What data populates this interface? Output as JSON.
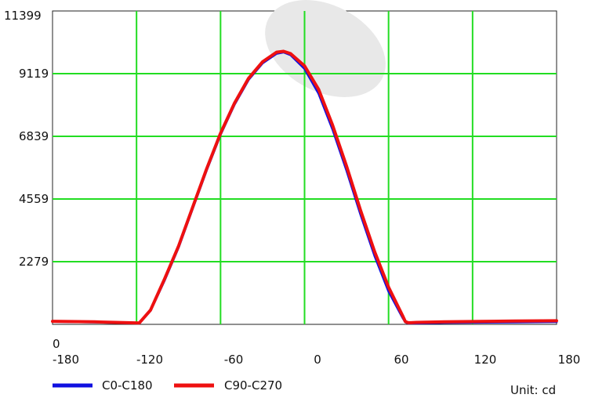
{
  "chart_data": {
    "type": "line",
    "x_ticks": [
      "-180",
      "-120",
      "-60",
      "0",
      "60",
      "120",
      "180"
    ],
    "y_ticks": [
      "0",
      "2279",
      "4559",
      "6839",
      "9119",
      "11399"
    ],
    "xlim": [
      -180,
      180
    ],
    "ylim": [
      0,
      11399
    ],
    "grid": true,
    "grid_color": "#22dd22",
    "legend_position": "bottom-left",
    "unit_label": "Unit: cd",
    "series": [
      {
        "name": "C0-C180",
        "color": "#1010e0",
        "x": [
          -180,
          -150,
          -118,
          -110,
          -100,
          -90,
          -80,
          -70,
          -60,
          -50,
          -40,
          -30,
          -20,
          -15,
          -10,
          0,
          10,
          20,
          30,
          40,
          50,
          60,
          70,
          72,
          74,
          76,
          80,
          100,
          150,
          180
        ],
        "y": [
          100,
          80,
          40,
          500,
          1600,
          2800,
          4200,
          5600,
          6900,
          8000,
          8900,
          9500,
          9850,
          9900,
          9800,
          9300,
          8400,
          7100,
          5600,
          4000,
          2500,
          1200,
          250,
          80,
          40,
          40,
          40,
          60,
          80,
          90
        ]
      },
      {
        "name": "C90-C270",
        "color": "#ee1010",
        "x": [
          -180,
          -150,
          -118,
          -110,
          -100,
          -90,
          -80,
          -70,
          -60,
          -50,
          -40,
          -30,
          -20,
          -15,
          -10,
          0,
          10,
          20,
          30,
          40,
          50,
          60,
          70,
          72,
          74,
          76,
          80,
          100,
          150,
          180
        ],
        "y": [
          110,
          90,
          50,
          520,
          1650,
          2850,
          4250,
          5650,
          6950,
          8050,
          8950,
          9550,
          9900,
          9930,
          9850,
          9400,
          8550,
          7250,
          5750,
          4150,
          2650,
          1350,
          320,
          100,
          60,
          60,
          70,
          90,
          120,
          130
        ]
      }
    ]
  }
}
